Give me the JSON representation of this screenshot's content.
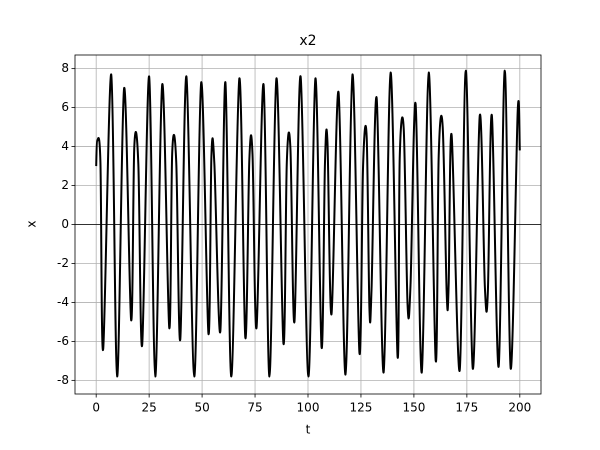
{
  "chart_data": {
    "type": "line",
    "title": "x2",
    "xlabel": "t",
    "ylabel": "x",
    "color": "#000000",
    "grid": true,
    "hline_y": 0,
    "xlim": [
      -10,
      210
    ],
    "ylim": [
      -8.7,
      8.7
    ],
    "xticks": [
      0,
      25,
      50,
      75,
      100,
      125,
      150,
      175,
      200
    ],
    "yticks": [
      -8,
      -6,
      -4,
      -2,
      0,
      2,
      4,
      6,
      8
    ],
    "x": [
      0,
      0.5,
      2,
      3.3,
      7.1,
      9.9,
      13.2,
      16.5,
      18,
      19.9,
      21.7,
      25,
      27.9,
      31.2,
      34.5,
      35.9,
      37.8,
      39.7,
      42.6,
      46.3,
      49.6,
      53,
      54.4,
      55.8,
      58.6,
      61,
      63.8,
      67.6,
      70.4,
      72.3,
      73.8,
      75.7,
      79,
      81.8,
      85.1,
      88.4,
      90,
      91.7,
      93.6,
      96.5,
      100.2,
      103.5,
      106.4,
      108,
      109.2,
      111.1,
      114.4,
      117.7,
      121,
      124.3,
      126,
      127.7,
      129,
      130,
      132.4,
      135.7,
      139,
      142.3,
      143.3,
      145.2,
      147,
      148.4,
      150.8,
      153.7,
      157,
      160.3,
      161.7,
      163.6,
      165.5,
      166.4,
      167.8,
      171.6,
      174.5,
      177.8,
      181.1,
      183.5,
      184.9,
      186.8,
      190,
      192.9,
      195.7,
      199,
      200
    ],
    "values": [
      3.0,
      4.3,
      3.2,
      -6.4,
      7.7,
      -7.8,
      7.0,
      -4.9,
      4.0,
      3.1,
      -6.2,
      7.6,
      -7.8,
      7.2,
      -5.3,
      3.7,
      3.2,
      -5.9,
      7.6,
      -7.8,
      7.3,
      -5.6,
      3.5,
      3.1,
      -5.5,
      7.3,
      -7.8,
      7.5,
      -5.8,
      3.3,
      3.6,
      -5.3,
      7.2,
      -7.8,
      7.5,
      -6.1,
      3.2,
      3.9,
      -5.0,
      7.6,
      -7.8,
      7.5,
      -6.3,
      3.1,
      4.2,
      -4.6,
      6.8,
      -7.7,
      7.7,
      -6.6,
      3.0,
      4.5,
      -4.3,
      -3.3,
      6.5,
      -7.6,
      7.8,
      -6.8,
      3.4,
      4.9,
      -4.1,
      -3.1,
      6.2,
      -7.6,
      7.8,
      -7.0,
      3.5,
      5.0,
      -3.6,
      -3.1,
      4.6,
      -7.5,
      7.9,
      -7.4,
      5.6,
      -3.2,
      -3.5,
      5.6,
      -7.3,
      7.9,
      -7.4,
      5.8,
      3.8
    ]
  }
}
